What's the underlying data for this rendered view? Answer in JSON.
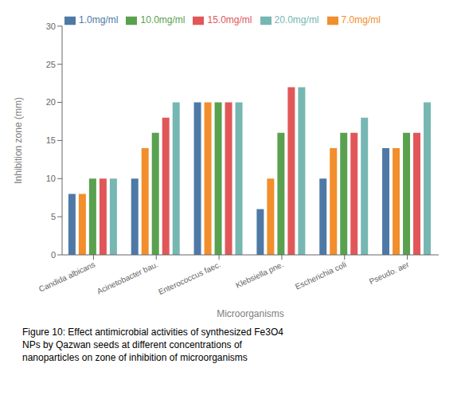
{
  "chart_data": {
    "type": "bar",
    "categories": [
      "Candida albicans",
      "Acinetobacter bau.",
      "Enterococcus faec.",
      "Klebsiella pne.",
      "Escherichia coli",
      "Pseudo. aer"
    ],
    "series": [
      {
        "name": "1.0mg/ml",
        "color": "#4e79a7",
        "values": [
          8,
          10,
          20,
          6,
          10,
          14
        ]
      },
      {
        "name": "7.0mg/ml",
        "color": "#f28e2b",
        "values": [
          8,
          14,
          20,
          10,
          14,
          14
        ]
      },
      {
        "name": "10.0mg/ml",
        "color": "#59a14f",
        "values": [
          10,
          16,
          20,
          16,
          16,
          16
        ]
      },
      {
        "name": "15.0mg/ml",
        "color": "#e15759",
        "values": [
          10,
          18,
          20,
          22,
          16,
          16
        ]
      },
      {
        "name": "20.0mg/ml",
        "color": "#76b7b2",
        "values": [
          10,
          20,
          20,
          22,
          18,
          20
        ]
      }
    ],
    "xlabel": "Microorganisms",
    "ylabel": "Inhibition zone (mm)",
    "ylim": [
      0,
      30
    ],
    "yticks": [
      0,
      5,
      10,
      15,
      20,
      25,
      30
    ],
    "grid": false,
    "legend": "top",
    "annotations": [
      "Figure 10: Effect antimicrobial activities of synthesized Fe3O4",
      "NPs by Qazwan seeds at different concentrations of",
      "nanoparticles on zone of inhibition of microorganisms"
    ]
  }
}
